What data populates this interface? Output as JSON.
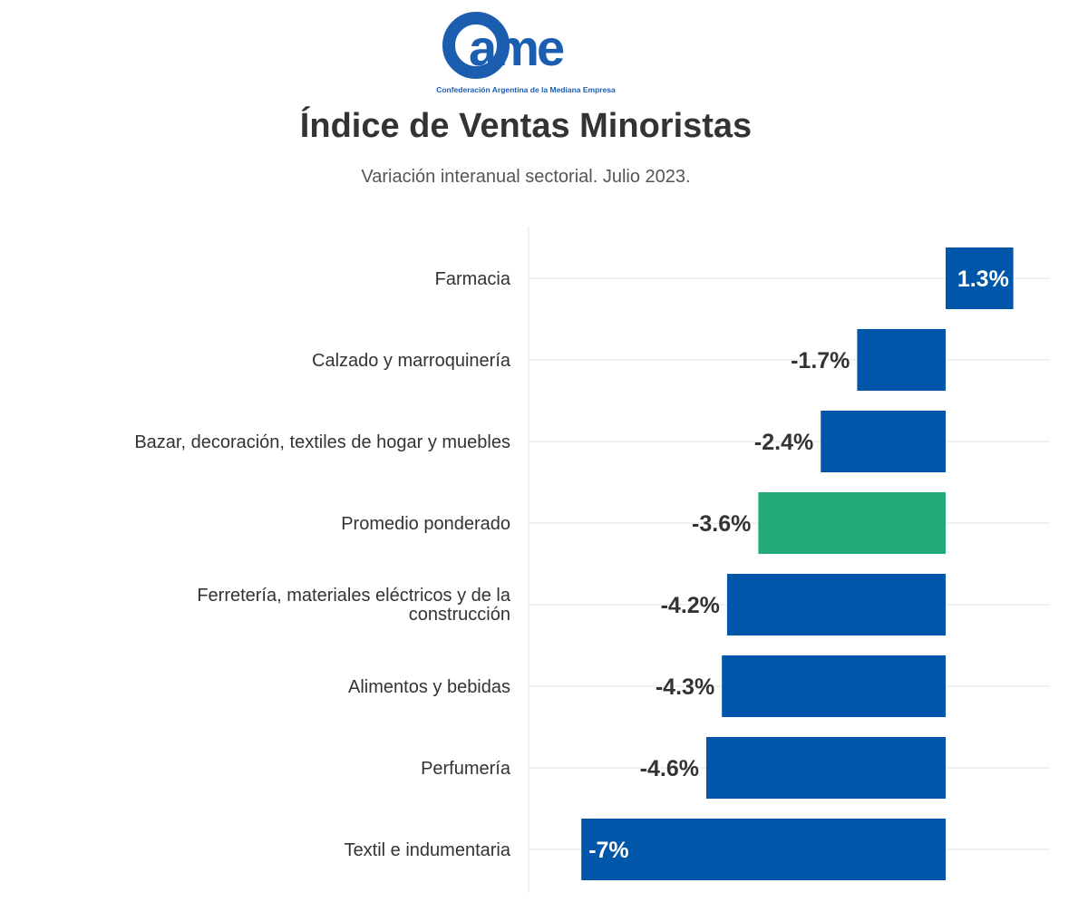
{
  "header": {
    "logo_text": "came",
    "logo_caption": "Confederación Argentina de la Mediana Empresa",
    "title": "Índice de Ventas Minoristas",
    "subtitle": "Variación interanual sectorial. Julio 2023."
  },
  "colors": {
    "bar": "#0056a8",
    "highlight": "#21ab78",
    "grid": "#e6e6e6",
    "logo": "#1b5eb0"
  },
  "chart_data": {
    "type": "bar",
    "orientation": "horizontal",
    "title": "Índice de Ventas Minoristas",
    "subtitle": "Variación interanual sectorial. Julio 2023.",
    "categories": [
      "Farmacia",
      "Calzado y marroquinería",
      "Bazar, decoración, textiles de hogar y muebles",
      "Promedio ponderado",
      "Ferretería, materiales eléctricos y de la construcción",
      "Alimentos y bebidas",
      "Perfumería",
      "Textil e indumentaria"
    ],
    "values": [
      1.3,
      -1.7,
      -2.4,
      -3.6,
      -4.2,
      -4.3,
      -4.6,
      -7
    ],
    "labels": [
      "1.3%",
      "-1.7%",
      "-2.4%",
      "-3.6%",
      "-4.2%",
      "-4.3%",
      "-4.6%",
      "-7%"
    ],
    "highlight": "Promedio ponderado",
    "xlim": [
      -8,
      2
    ],
    "grid": true,
    "legend": "none"
  }
}
